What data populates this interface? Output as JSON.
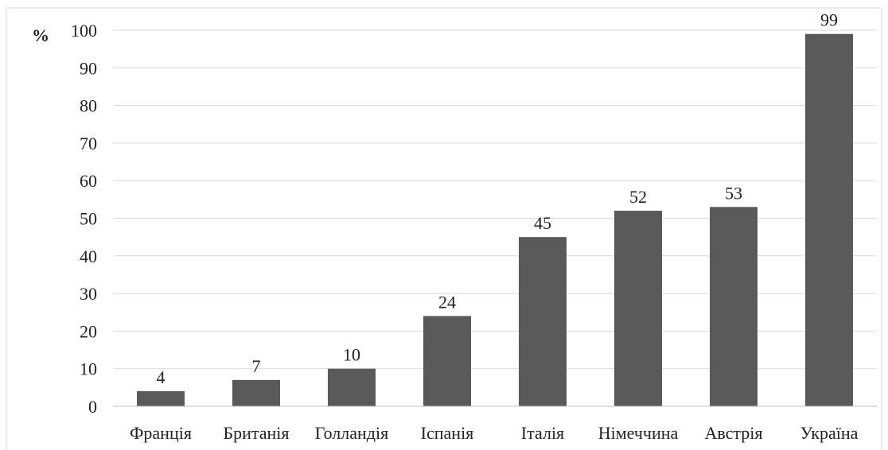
{
  "chart_data": {
    "type": "bar",
    "unit_label": "%",
    "categories": [
      "Франція",
      "Британія",
      "Голландія",
      "Іспанія",
      "Італія",
      "Німеччина",
      "Австрія",
      "Україна"
    ],
    "values": [
      4,
      7,
      10,
      24,
      45,
      52,
      53,
      99
    ],
    "data_labels": [
      "4",
      "7",
      "10",
      "24",
      "45",
      "52",
      "53",
      "99"
    ],
    "y_ticks": [
      "0",
      "10",
      "20",
      "30",
      "40",
      "50",
      "60",
      "70",
      "80",
      "90",
      "100"
    ],
    "ylim": [
      0,
      100
    ],
    "grid": true,
    "legend": "none",
    "bar_color": "#595959",
    "grid_color": "#d9d9d9",
    "frame_color": "#d9d9d9"
  }
}
